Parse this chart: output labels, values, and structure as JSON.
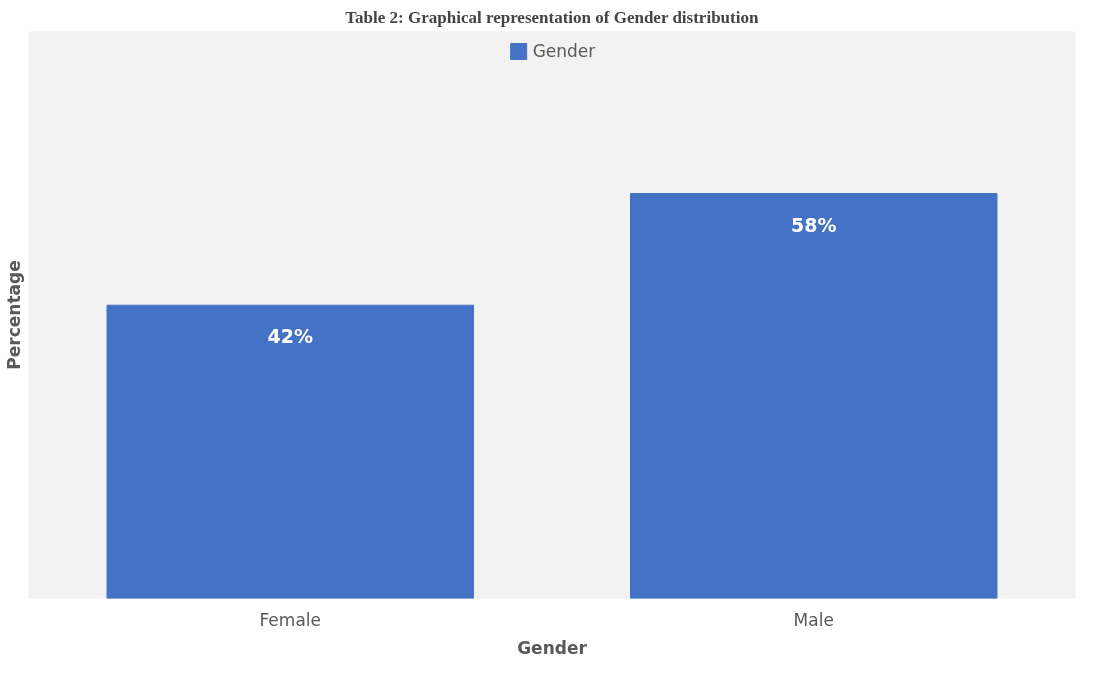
{
  "chart_data": {
    "type": "bar",
    "title": "Table 2: Graphical representation of Gender distribution",
    "xlabel": "Gender",
    "ylabel": "Percentage",
    "categories": [
      "Female",
      "Male"
    ],
    "series": [
      {
        "name": "Gender",
        "color": "#4472c4",
        "values": [
          42,
          58
        ],
        "value_labels": [
          "42%",
          "58%"
        ]
      }
    ],
    "legend": "top",
    "grid": false
  }
}
